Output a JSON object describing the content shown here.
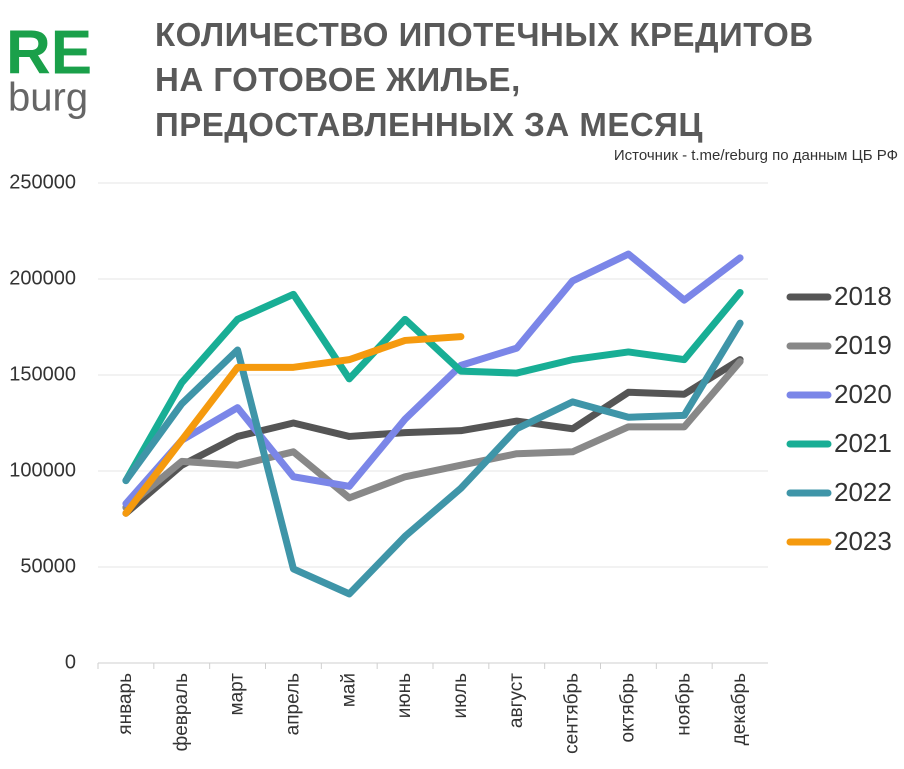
{
  "chart_data": {
    "type": "line",
    "brand": "RE",
    "brand_sub": "burg",
    "title": "КОЛИЧЕСТВО ИПОТЕЧНЫХ КРЕДИТОВ НА ГОТОВОЕ ЖИЛЬЕ, ПРЕДОСТАВЛЕННЫХ ЗА МЕСЯЦ",
    "source": "Источник - t.me/reburg по данным ЦБ РФ",
    "categories": [
      "январь",
      "февраль",
      "март",
      "апрель",
      "май",
      "июнь",
      "июль",
      "август",
      "сентябрь",
      "октябрь",
      "ноябрь",
      "декабрь"
    ],
    "series": [
      {
        "name": "2018",
        "color": "#555555",
        "values": [
          78000,
          103000,
          118000,
          125000,
          118000,
          120000,
          121000,
          126000,
          122000,
          141000,
          140000,
          158000
        ]
      },
      {
        "name": "2019",
        "color": "#888888",
        "values": [
          81000,
          105000,
          103000,
          110000,
          86000,
          97000,
          103000,
          109000,
          110000,
          123000,
          123000,
          157000
        ]
      },
      {
        "name": "2020",
        "color": "#7b86e8",
        "values": [
          83000,
          116000,
          133000,
          97000,
          92000,
          127000,
          155000,
          164000,
          199000,
          213000,
          189000,
          211000
        ]
      },
      {
        "name": "2021",
        "color": "#18ae95",
        "values": [
          95000,
          146000,
          179000,
          192000,
          148000,
          179000,
          152000,
          151000,
          158000,
          162000,
          158000,
          193000
        ]
      },
      {
        "name": "2022",
        "color": "#3f95a8",
        "values": [
          95000,
          135000,
          163000,
          49000,
          36000,
          66000,
          91000,
          122000,
          136000,
          128000,
          129000,
          177000
        ]
      },
      {
        "name": "2023",
        "color": "#f59a0e",
        "values": [
          78000,
          116000,
          154000,
          154000,
          158000,
          168000,
          170000,
          null,
          null,
          null,
          null,
          null
        ]
      }
    ],
    "ylim": [
      0,
      250000
    ],
    "yticks": [
      0,
      50000,
      100000,
      150000,
      200000,
      250000
    ],
    "grid": true,
    "legend": "right"
  }
}
